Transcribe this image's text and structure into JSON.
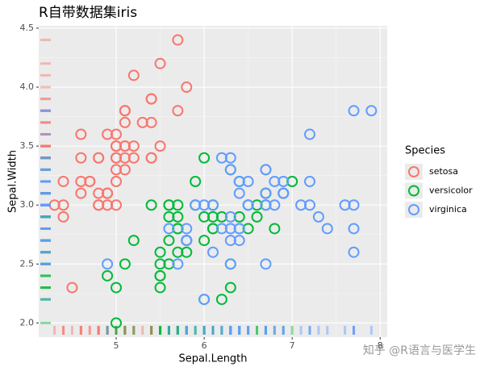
{
  "chart_data": {
    "type": "scatter",
    "title": "R自带数据集iris",
    "x_label": "Sepal.Length",
    "y_label": "Sepal.Width",
    "legend_title": "Species",
    "legend_position": "right",
    "grid": true,
    "rug": true,
    "xlim": [
      4.12,
      8.08
    ],
    "ylim": [
      1.88,
      4.52
    ],
    "xticks": [
      5,
      6,
      7,
      8
    ],
    "yticks": [
      {
        "value": 2,
        "label": "2.0"
      },
      2.5,
      {
        "value": 3,
        "label": "3.0"
      },
      3.5,
      {
        "value": 4,
        "label": "4.0"
      },
      4.5
    ],
    "series": [
      {
        "name": "setosa",
        "color": "#F8766D",
        "x": [
          5.1,
          4.9,
          4.7,
          4.6,
          5.0,
          5.4,
          4.6,
          5.0,
          4.4,
          4.9,
          5.4,
          4.8,
          4.8,
          4.3,
          5.8,
          5.7,
          5.4,
          5.1,
          5.7,
          5.1,
          5.4,
          5.1,
          4.6,
          5.1,
          4.8,
          5.0,
          5.0,
          5.2,
          5.2,
          4.7,
          4.8,
          5.4,
          5.2,
          5.5,
          4.9,
          5.0,
          5.5,
          4.9,
          4.4,
          5.1,
          5.0,
          4.5,
          4.4,
          5.0,
          5.1,
          4.8,
          5.1,
          4.6,
          5.3,
          5.0
        ],
        "values": [
          3.5,
          3.0,
          3.2,
          3.1,
          3.6,
          3.9,
          3.4,
          3.4,
          2.9,
          3.1,
          3.7,
          3.4,
          3.0,
          3.0,
          4.0,
          4.4,
          3.9,
          3.5,
          3.8,
          3.8,
          3.4,
          3.7,
          3.6,
          3.3,
          3.4,
          3.0,
          3.4,
          3.5,
          3.4,
          3.2,
          3.1,
          3.4,
          4.1,
          4.2,
          3.1,
          3.2,
          3.5,
          3.6,
          3.0,
          3.4,
          3.5,
          2.3,
          3.2,
          3.5,
          3.8,
          3.0,
          3.8,
          3.2,
          3.7,
          3.3
        ]
      },
      {
        "name": "versicolor",
        "color": "#00BA38",
        "x": [
          7.0,
          6.4,
          6.9,
          5.5,
          6.5,
          5.7,
          6.3,
          4.9,
          6.6,
          5.2,
          5.0,
          5.9,
          6.0,
          6.1,
          5.6,
          6.7,
          5.6,
          5.8,
          6.2,
          5.6,
          5.9,
          6.1,
          6.3,
          6.1,
          6.4,
          6.6,
          6.8,
          6.7,
          6.0,
          5.7,
          5.5,
          5.5,
          5.8,
          6.0,
          5.4,
          6.0,
          6.7,
          6.3,
          5.6,
          5.5,
          5.5,
          6.1,
          5.8,
          5.0,
          5.6,
          5.7,
          5.7,
          6.2,
          5.1,
          5.7
        ],
        "values": [
          3.2,
          3.2,
          3.1,
          2.3,
          2.8,
          2.8,
          3.3,
          2.4,
          2.9,
          2.7,
          2.0,
          3.0,
          2.2,
          2.9,
          2.9,
          3.1,
          3.0,
          2.7,
          2.2,
          2.5,
          3.2,
          2.8,
          2.5,
          2.8,
          2.9,
          3.0,
          2.8,
          3.0,
          2.9,
          2.6,
          2.4,
          2.4,
          2.7,
          2.7,
          3.0,
          3.4,
          3.1,
          2.3,
          3.0,
          2.5,
          2.6,
          3.0,
          2.6,
          2.3,
          2.7,
          3.0,
          2.9,
          2.9,
          2.5,
          2.8
        ]
      },
      {
        "name": "virginica",
        "color": "#619CFF",
        "x": [
          6.3,
          5.8,
          7.1,
          6.3,
          6.5,
          7.6,
          4.9,
          7.3,
          6.7,
          7.2,
          6.5,
          6.4,
          6.8,
          5.7,
          5.8,
          6.4,
          6.5,
          7.7,
          7.7,
          6.0,
          6.9,
          5.6,
          7.7,
          6.3,
          6.7,
          7.2,
          6.2,
          6.1,
          6.4,
          7.2,
          7.4,
          7.9,
          6.4,
          6.3,
          6.1,
          7.7,
          6.3,
          6.4,
          6.0,
          6.9,
          6.7,
          6.9,
          5.8,
          6.8,
          6.7,
          6.7,
          6.3,
          6.5,
          6.2,
          5.9
        ],
        "values": [
          3.3,
          2.7,
          3.0,
          2.9,
          3.0,
          3.0,
          2.5,
          2.9,
          2.5,
          3.6,
          3.2,
          2.7,
          3.0,
          2.5,
          2.8,
          3.2,
          3.0,
          3.8,
          2.6,
          2.2,
          3.2,
          2.8,
          2.8,
          2.7,
          3.3,
          3.2,
          2.8,
          3.0,
          2.8,
          3.0,
          2.8,
          3.8,
          2.8,
          2.8,
          2.6,
          3.0,
          3.4,
          3.1,
          3.0,
          3.1,
          3.1,
          3.1,
          2.7,
          3.2,
          3.3,
          3.0,
          2.5,
          3.0,
          3.4,
          3.0
        ]
      }
    ]
  },
  "watermark": "知乎 @R语言与医学生"
}
